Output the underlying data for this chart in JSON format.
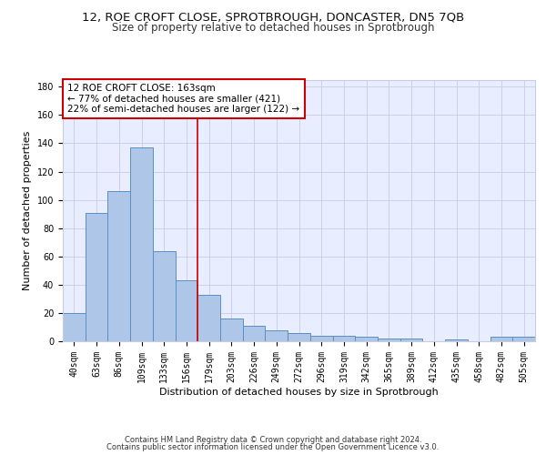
{
  "title1": "12, ROE CROFT CLOSE, SPROTBROUGH, DONCASTER, DN5 7QB",
  "title2": "Size of property relative to detached houses in Sprotbrough",
  "xlabel": "Distribution of detached houses by size in Sprotbrough",
  "ylabel": "Number of detached properties",
  "footer1": "Contains HM Land Registry data © Crown copyright and database right 2024.",
  "footer2": "Contains public sector information licensed under the Open Government Licence v3.0.",
  "bar_labels": [
    "40sqm",
    "63sqm",
    "86sqm",
    "109sqm",
    "133sqm",
    "156sqm",
    "179sqm",
    "203sqm",
    "226sqm",
    "249sqm",
    "272sqm",
    "296sqm",
    "319sqm",
    "342sqm",
    "365sqm",
    "389sqm",
    "412sqm",
    "435sqm",
    "458sqm",
    "482sqm",
    "505sqm"
  ],
  "bar_values": [
    20,
    91,
    106,
    137,
    64,
    43,
    33,
    16,
    11,
    8,
    6,
    4,
    4,
    3,
    2,
    2,
    0,
    1,
    0,
    3,
    3
  ],
  "bar_color": "#aec6e8",
  "bar_edge_color": "#5a8fc2",
  "vline_x": 5.5,
  "vline_color": "#cc0000",
  "annotation_text": "12 ROE CROFT CLOSE: 163sqm\n← 77% of detached houses are smaller (421)\n22% of semi-detached houses are larger (122) →",
  "annotation_box_color": "#ffffff",
  "annotation_box_edge": "#cc0000",
  "ylim": [
    0,
    185
  ],
  "yticks": [
    0,
    20,
    40,
    60,
    80,
    100,
    120,
    140,
    160,
    180
  ],
  "bg_color": "#e8eeff",
  "grid_color": "#c8cce0",
  "title1_fontsize": 9.5,
  "title2_fontsize": 8.5,
  "tick_fontsize": 7,
  "ylabel_fontsize": 8,
  "xlabel_fontsize": 8,
  "ann_fontsize": 7.5,
  "footer_fontsize": 6
}
